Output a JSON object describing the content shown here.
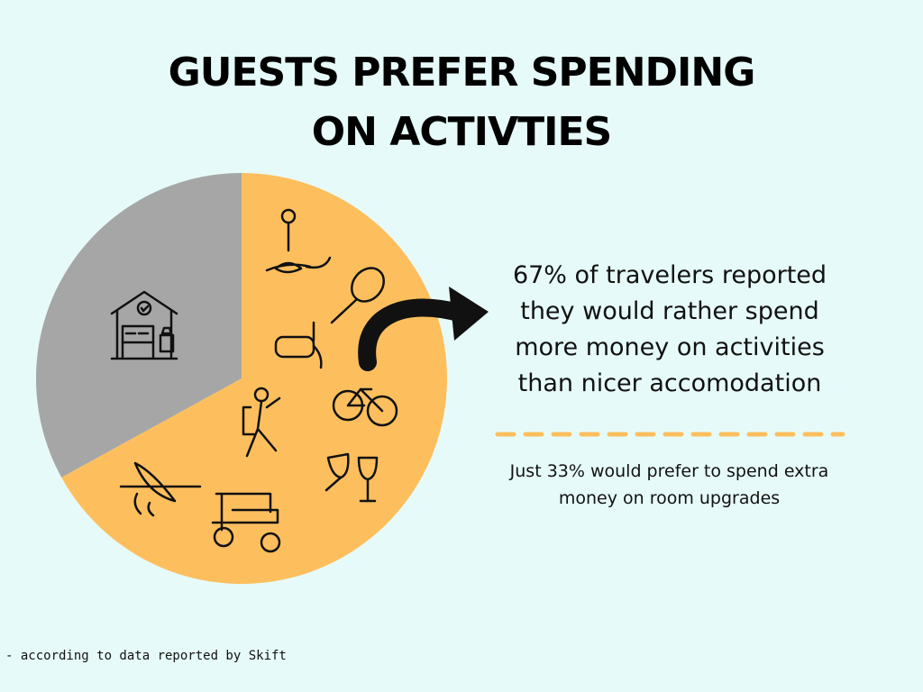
{
  "chart_data": {
    "type": "pie",
    "title": "GUESTS PREFER SPENDING ON ACTIVTIES",
    "categories": [
      null,
      null
    ],
    "values": [
      67,
      33
    ],
    "colors": [
      "#fdbf5e",
      "#a6a6a6"
    ],
    "annotations": [
      "67% of travelers reported they would rather spend more money on activities than nicer accomodation",
      "Just 33% would prefer to spend extra money on room upgrades"
    ],
    "footnote": "- according to data reported by Skift"
  }
}
